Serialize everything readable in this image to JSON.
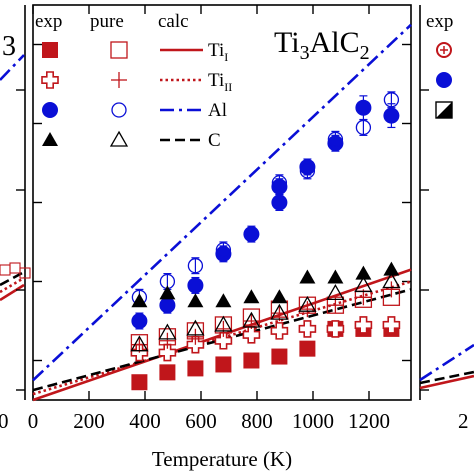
{
  "colors": {
    "red": "#c0161b",
    "blue": "#0a0fd6",
    "black": "#000000",
    "axis": "#000000"
  },
  "chart_data": [
    {
      "type": "scatter",
      "title": "Ti3AlC2",
      "title_parts": [
        "Ti",
        "3",
        "AlC",
        "2"
      ],
      "xlabel": "Temperature (K)",
      "ylabel": "",
      "xlim": [
        0,
        1350
      ],
      "ylim": [
        0,
        1.0
      ],
      "x_ticks": [
        0,
        200,
        400,
        600,
        800,
        1000,
        1200
      ],
      "x_tick_labels": [
        "0",
        "200",
        "400",
        "600",
        "800",
        "1000",
        "1200"
      ],
      "y_ticks": [
        0.1,
        0.3,
        0.5,
        0.7,
        0.9
      ],
      "y_tick_labels_visible": false,
      "grid": false,
      "legend": {
        "position": "top-left",
        "headers": [
          "exp",
          "pure",
          "calc"
        ],
        "rows": [
          {
            "label": "Ti",
            "sub": "I",
            "line": "solid",
            "color": "red",
            "exp_marker": "filled-square",
            "pure_marker": "open-square"
          },
          {
            "label": "Ti",
            "sub": "II",
            "line": "dotted",
            "color": "red",
            "exp_marker": "open-cross",
            "pure_marker": "plus"
          },
          {
            "label": "Al",
            "sub": "",
            "line": "dash-dot",
            "color": "blue",
            "exp_marker": "filled-circle",
            "pure_marker": "open-circle"
          },
          {
            "label": "C",
            "sub": "",
            "line": "dashed",
            "color": "black",
            "exp_marker": "filled-triangle",
            "pure_marker": "open-triangle"
          }
        ]
      },
      "lines": [
        {
          "key": "Ti_I",
          "color": "red",
          "style": "solid",
          "x": [
            0,
            1350
          ],
          "y": [
            0.0,
            0.33
          ]
        },
        {
          "key": "Ti_II",
          "color": "red",
          "style": "dotted",
          "x": [
            0,
            1350
          ],
          "y": [
            0.015,
            0.3
          ]
        },
        {
          "key": "Al",
          "color": "blue",
          "style": "dash-dot",
          "x": [
            0,
            1350
          ],
          "y": [
            0.05,
            0.95
          ]
        },
        {
          "key": "C",
          "color": "black",
          "style": "dashed",
          "x": [
            0,
            1350
          ],
          "y": [
            0.025,
            0.28
          ]
        }
      ],
      "series": [
        {
          "key": "TiI_exp",
          "color": "red",
          "marker": "filled-square",
          "x": [
            380,
            480,
            580,
            680,
            780,
            880,
            980,
            1080,
            1180,
            1280
          ],
          "y": [
            0.045,
            0.07,
            0.08,
            0.09,
            0.1,
            0.11,
            0.13,
            0.18,
            0.18,
            0.18
          ],
          "err": []
        },
        {
          "key": "TiII_exp",
          "color": "red",
          "marker": "open-cross",
          "x": [
            380,
            480,
            580,
            680,
            780,
            880,
            980,
            1080,
            1180,
            1280
          ],
          "y": [
            0.12,
            0.12,
            0.14,
            0.15,
            0.165,
            0.175,
            0.18,
            0.18,
            0.19,
            0.19
          ],
          "err": []
        },
        {
          "key": "TiI_pure",
          "color": "red",
          "marker": "open-square",
          "x": [
            380,
            480,
            580,
            680,
            780,
            880,
            980,
            1080,
            1180,
            1280
          ],
          "y": [
            0.145,
            0.16,
            0.175,
            0.19,
            0.21,
            0.23,
            0.24,
            0.24,
            0.255,
            0.26
          ],
          "err": []
        },
        {
          "key": "TiII_pure",
          "color": "red",
          "marker": "plus",
          "x": [
            380,
            480,
            580,
            680,
            780,
            880,
            980,
            1080,
            1180,
            1280
          ],
          "y": [
            0.14,
            0.15,
            0.16,
            0.18,
            0.2,
            0.22,
            0.23,
            0.24,
            0.26,
            0.28
          ],
          "err": []
        },
        {
          "key": "Al_exp",
          "color": "blue",
          "marker": "filled-circle",
          "x": [
            380,
            480,
            580,
            680,
            780,
            880,
            880,
            980,
            1080,
            1180,
            1280
          ],
          "y": [
            0.2,
            0.24,
            0.29,
            0.37,
            0.42,
            0.5,
            0.54,
            0.59,
            0.65,
            0.74,
            0.72
          ],
          "err": [
            0.02,
            0.02,
            0.02,
            0.02,
            0.02,
            0.02,
            0.02,
            0.02,
            0.02,
            0.03,
            0.03
          ]
        },
        {
          "key": "Al_pure",
          "color": "blue",
          "marker": "open-circle",
          "x": [
            380,
            480,
            580,
            680,
            880,
            980,
            1080,
            1180,
            1280
          ],
          "y": [
            0.26,
            0.3,
            0.34,
            0.38,
            0.55,
            0.58,
            0.66,
            0.69,
            0.76
          ],
          "err": [
            0.02,
            0.02,
            0.02,
            0.02,
            0.02,
            0.02,
            0.02,
            0.02,
            0.02
          ]
        },
        {
          "key": "C_exp",
          "color": "black",
          "marker": "filled-triangle",
          "x": [
            380,
            480,
            580,
            680,
            780,
            880,
            980,
            1080,
            1180,
            1280
          ],
          "y": [
            0.25,
            0.27,
            0.25,
            0.25,
            0.26,
            0.26,
            0.31,
            0.31,
            0.32,
            0.33
          ],
          "err": []
        },
        {
          "key": "C_pure",
          "color": "black",
          "marker": "open-triangle",
          "x": [
            380,
            480,
            580,
            680,
            780,
            880,
            980,
            1080,
            1180,
            1280
          ],
          "y": [
            0.14,
            0.17,
            0.18,
            0.19,
            0.2,
            0.22,
            0.24,
            0.27,
            0.29,
            0.3
          ],
          "err": []
        }
      ]
    },
    {
      "type": "line",
      "panel": "left (cropped)",
      "title_fragment": "3",
      "x_tick_labels": [
        "0"
      ],
      "lines": [
        {
          "color": "blue",
          "style": "dash-dot"
        },
        {
          "color": "red",
          "style": "solid"
        },
        {
          "color": "red",
          "style": "dotted"
        },
        {
          "color": "black",
          "style": "dashed"
        }
      ]
    },
    {
      "type": "scatter",
      "panel": "right (cropped)",
      "legend_header": "exp",
      "x_tick_labels": [
        "2"
      ],
      "markers": [
        "open-cross-circle",
        "filled-circle",
        "half-filled-square"
      ]
    }
  ]
}
